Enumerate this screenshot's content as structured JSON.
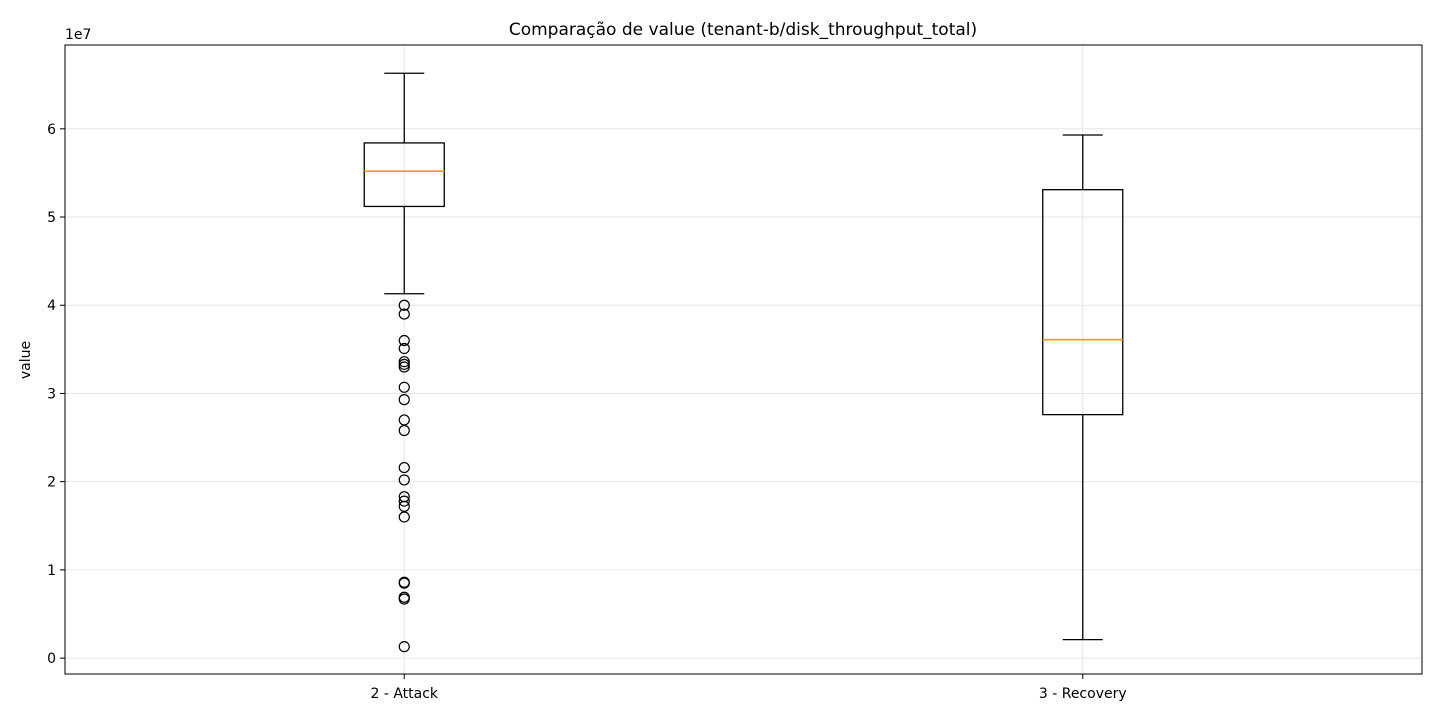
{
  "chart_data": {
    "type": "boxplot",
    "title": "Comparação de value (tenant-b/disk_throughput_total)",
    "xlabel": "",
    "ylabel": "value",
    "y_offset_label": "1e7",
    "y_scale_factor": 10000000,
    "ylim": [
      -1800000,
      69500000
    ],
    "yticks": [
      0,
      10000000,
      20000000,
      30000000,
      40000000,
      50000000,
      60000000
    ],
    "ytick_labels": [
      "0",
      "1",
      "2",
      "3",
      "4",
      "5",
      "6"
    ],
    "grid": true,
    "categories": [
      "2 - Attack",
      "3 - Recovery"
    ],
    "boxes": [
      {
        "label": "2 - Attack",
        "whisker_low": 41300000,
        "q1": 51200000,
        "median": 55200000,
        "q3": 58400000,
        "whisker_high": 66300000,
        "outliers": [
          40000000,
          39000000,
          36000000,
          35100000,
          33600000,
          33300000,
          33000000,
          30700000,
          29300000,
          27000000,
          25800000,
          21600000,
          20200000,
          18300000,
          17800000,
          17200000,
          16000000,
          8600000,
          8500000,
          6900000,
          6700000,
          1300000
        ]
      },
      {
        "label": "3 - Recovery",
        "whisker_low": 2100000,
        "q1": 27600000,
        "median": 36100000,
        "q3": 53100000,
        "whisker_high": 59300000,
        "outliers": []
      }
    ],
    "colors": {
      "box": "#000000",
      "median": "#e69f1e",
      "grid": "#e6e6e6",
      "outlier": "#000000"
    }
  }
}
